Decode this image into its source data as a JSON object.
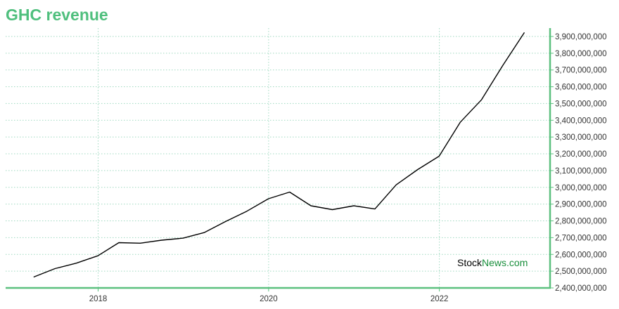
{
  "title": "GHC revenue",
  "watermark": {
    "part1": "Stock",
    "part2": "News",
    "part3": ".com"
  },
  "colors": {
    "title": "#4fbf7d",
    "axis": "#5cc07f",
    "grid": "#9fd9c0",
    "line": "#000000",
    "watermark_dark": "#000000",
    "watermark_green": "#1a8f3c"
  },
  "chart_data": {
    "type": "line",
    "title": "GHC revenue",
    "xlabel": "",
    "ylabel": "",
    "x_tick_labels": [
      "2018",
      "2020",
      "2022"
    ],
    "x_ticks": [
      "2018-01-01",
      "2020-01-01",
      "2022-01-01"
    ],
    "x_range": [
      "2016-12-01",
      "2023-04-20"
    ],
    "ylim": [
      2400000000,
      3950000000
    ],
    "y_ticks": [
      2400000000,
      2500000000,
      2600000000,
      2700000000,
      2800000000,
      2900000000,
      3000000000,
      3100000000,
      3200000000,
      3300000000,
      3400000000,
      3500000000,
      3600000000,
      3700000000,
      3800000000,
      3900000000
    ],
    "y_tick_labels": [
      "2,400,000,000",
      "2,500,000,000",
      "2,600,000,000",
      "2,700,000,000",
      "2,800,000,000",
      "2,900,000,000",
      "3,000,000,000",
      "3,100,000,000",
      "3,200,000,000",
      "3,300,000,000",
      "3,400,000,000",
      "3,500,000,000",
      "3,600,000,000",
      "3,700,000,000",
      "3,800,000,000",
      "3,900,000,000"
    ],
    "y_axis_position": "right",
    "grid": true,
    "legend": "none",
    "series": [
      {
        "x": [
          "2017-03-31",
          "2017-06-30",
          "2017-09-30",
          "2017-12-31",
          "2018-03-31",
          "2018-06-30",
          "2018-09-30",
          "2018-12-31",
          "2019-03-31",
          "2019-06-30",
          "2019-09-30",
          "2019-12-31",
          "2020-03-31",
          "2020-06-30",
          "2020-09-30",
          "2020-12-31",
          "2021-03-31",
          "2021-06-30",
          "2021-09-30",
          "2021-12-31",
          "2022-03-31",
          "2022-06-30",
          "2022-09-30",
          "2022-12-31"
        ],
        "y": [
          2465000000,
          2515000000,
          2548000000,
          2592000000,
          2670000000,
          2667000000,
          2685000000,
          2697000000,
          2730000000,
          2796000000,
          2858000000,
          2932000000,
          2972000000,
          2890000000,
          2867000000,
          2890000000,
          2871000000,
          3015000000,
          3106000000,
          3186000000,
          3388000000,
          3522000000,
          3728000000,
          3924000000
        ]
      }
    ]
  }
}
